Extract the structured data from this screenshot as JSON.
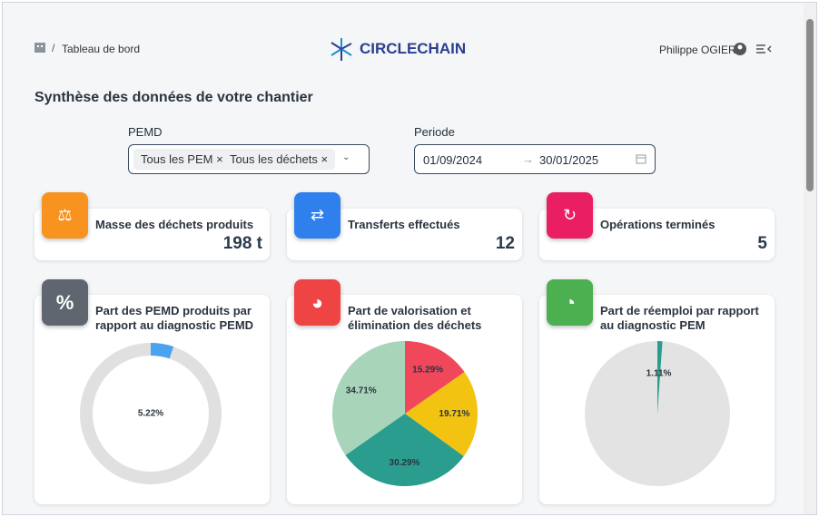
{
  "header": {
    "breadcrumb": "Tableau de bord",
    "logo": "CIRCLECHAIN",
    "user": "Philippe OGIER"
  },
  "title": "Synthèse des données de votre chantier",
  "filters": {
    "pemd_label": "PEMD",
    "tags": [
      "Tous les PEM",
      "Tous les déchets"
    ],
    "period_label": "Periode",
    "start": "01/09/2024",
    "end": "30/01/2025"
  },
  "stats": [
    {
      "label": "Masse des déchets produits",
      "value": "198 t"
    },
    {
      "label": "Transferts effectués",
      "value": 12
    },
    {
      "label": "Opérations terminés",
      "value": 5
    }
  ],
  "cards": [
    {
      "label": "Part des PEMD produits par rapport au diagnostic PEMD",
      "chart": {
        "type": "donut",
        "values": [
          5.22
        ],
        "value_labels": [
          "5.22%"
        ],
        "colors": [
          "#4aa3ee"
        ],
        "track": "#e0e0e0"
      }
    },
    {
      "label": "Part de valorisation et élimination des déchets",
      "chart": {
        "type": "pie",
        "values": [
          15.29,
          19.71,
          30.29,
          34.71
        ],
        "value_labels": [
          "15.29%",
          "19.71%",
          "30.29%",
          "34.71%"
        ],
        "colors": [
          "#f0475a",
          "#f2c311",
          "#2a9d8f",
          "#a8d5b9"
        ]
      }
    },
    {
      "label": "Part de réemploi par rapport au diagnostic PEM",
      "chart": {
        "type": "pie",
        "values": [
          1.11
        ],
        "value_labels": [
          "1.11%"
        ],
        "colors": [
          "#2a9d8f"
        ],
        "track": "#e3e3e3"
      }
    }
  ]
}
